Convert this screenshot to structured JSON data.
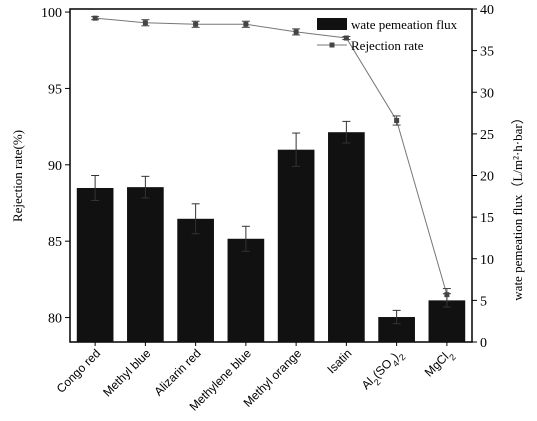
{
  "chart_data": {
    "type": "bar",
    "categories": [
      "Congo red",
      "Methyl blue",
      "Alizarin red",
      "Methylene blue",
      "Methyl orange",
      "Isatin",
      "Al2(SO4)2",
      "MgCl2"
    ],
    "categories_rich": [
      [
        [
          "Congo red",
          "n"
        ]
      ],
      [
        [
          "Methyl blue",
          "n"
        ]
      ],
      [
        [
          "Alizarin red",
          "n"
        ]
      ],
      [
        [
          "Methylene blue",
          "n"
        ]
      ],
      [
        [
          "Methyl orange",
          "n"
        ]
      ],
      [
        [
          "Isatin",
          "n"
        ]
      ],
      [
        [
          "Al",
          "n"
        ],
        [
          "2",
          "sub"
        ],
        [
          "(SO",
          "n"
        ],
        [
          "4",
          "sub"
        ],
        [
          ")",
          "n"
        ],
        [
          "2",
          "sub"
        ]
      ],
      [
        [
          "MgCl",
          "n"
        ],
        [
          "2",
          "sub"
        ]
      ]
    ],
    "series": [
      {
        "name": "wate pemeation flux",
        "type": "bar",
        "axis": "right",
        "values": [
          18.5,
          18.6,
          14.8,
          12.4,
          23.1,
          25.2,
          3.0,
          5.0
        ],
        "errors": [
          1.5,
          1.3,
          1.8,
          1.5,
          2.0,
          1.3,
          0.8,
          0.8
        ],
        "color": "#111111"
      },
      {
        "name": "Rejection rate",
        "type": "line",
        "axis": "left",
        "values": [
          99.6,
          99.3,
          99.2,
          99.2,
          98.7,
          98.3,
          92.9,
          81.5
        ],
        "errors": [
          0.1,
          0.2,
          0.2,
          0.2,
          0.2,
          0.1,
          0.3,
          0.4
        ],
        "color": "#777777",
        "marker_color": "#444444"
      }
    ],
    "ylabel": "Rejection rate(%)",
    "ylim": [
      78.4,
      100.2
    ],
    "yticks": [
      80,
      85,
      90,
      95,
      100
    ],
    "y2label": "wate pemeation flux（L/m²·h·bar）",
    "y2lim": [
      0,
      40
    ],
    "y2ticks": [
      0,
      5,
      10,
      15,
      20,
      25,
      30,
      35,
      40
    ],
    "xlabel": "",
    "grid": false,
    "legend_position": "top-right"
  }
}
